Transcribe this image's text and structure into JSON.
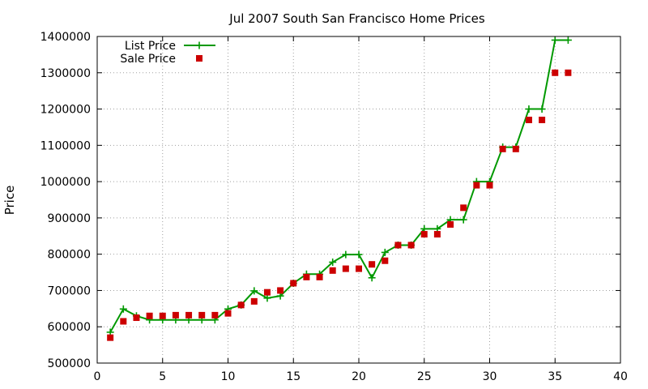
{
  "chart_data": {
    "type": "line",
    "title": "Jul 2007 South San Francisco Home Prices",
    "xlabel": "",
    "ylabel": "Price",
    "xlim": [
      0,
      40
    ],
    "ylim": [
      500000,
      1400000
    ],
    "x_ticks": [
      0,
      5,
      10,
      15,
      20,
      25,
      30,
      35,
      40
    ],
    "y_ticks": [
      500000,
      600000,
      700000,
      800000,
      900000,
      1000000,
      1100000,
      1200000,
      1300000,
      1400000
    ],
    "grid": true,
    "legend_position": "top-left",
    "series": [
      {
        "name": "List Price",
        "style": "linespoints",
        "marker": "plus",
        "color": "#009900",
        "x": [
          1,
          2,
          3,
          4,
          5,
          6,
          7,
          8,
          9,
          10,
          11,
          12,
          13,
          14,
          15,
          16,
          17,
          18,
          19,
          20,
          21,
          22,
          23,
          24,
          25,
          26,
          27,
          28,
          29,
          30,
          31,
          32,
          33,
          34,
          35,
          36
        ],
        "y": [
          585000,
          649000,
          630000,
          619000,
          619000,
          619000,
          619000,
          619000,
          619000,
          649000,
          660000,
          699000,
          679000,
          685000,
          720000,
          745000,
          745000,
          778000,
          799000,
          799000,
          735000,
          805000,
          825000,
          825000,
          870000,
          870000,
          895000,
          895000,
          1000000,
          1000000,
          1095000,
          1095000,
          1200000,
          1200000,
          1390000,
          1390000
        ]
      },
      {
        "name": "Sale Price",
        "style": "points",
        "marker": "square",
        "color": "#cc0000",
        "x": [
          1,
          2,
          3,
          4,
          5,
          6,
          7,
          8,
          9,
          10,
          11,
          12,
          13,
          14,
          15,
          16,
          17,
          18,
          19,
          20,
          21,
          22,
          23,
          24,
          25,
          26,
          27,
          28,
          29,
          30,
          31,
          32,
          33,
          34,
          35,
          36
        ],
        "y": [
          570000,
          615000,
          625000,
          630000,
          630000,
          632000,
          632000,
          632000,
          632000,
          637000,
          660000,
          670000,
          695000,
          700000,
          720000,
          737000,
          737000,
          755000,
          760000,
          760000,
          772000,
          782000,
          825000,
          825000,
          855000,
          855000,
          882000,
          928000,
          990000,
          990000,
          1090000,
          1090000,
          1170000,
          1170000,
          1300000,
          1300000
        ]
      }
    ]
  }
}
